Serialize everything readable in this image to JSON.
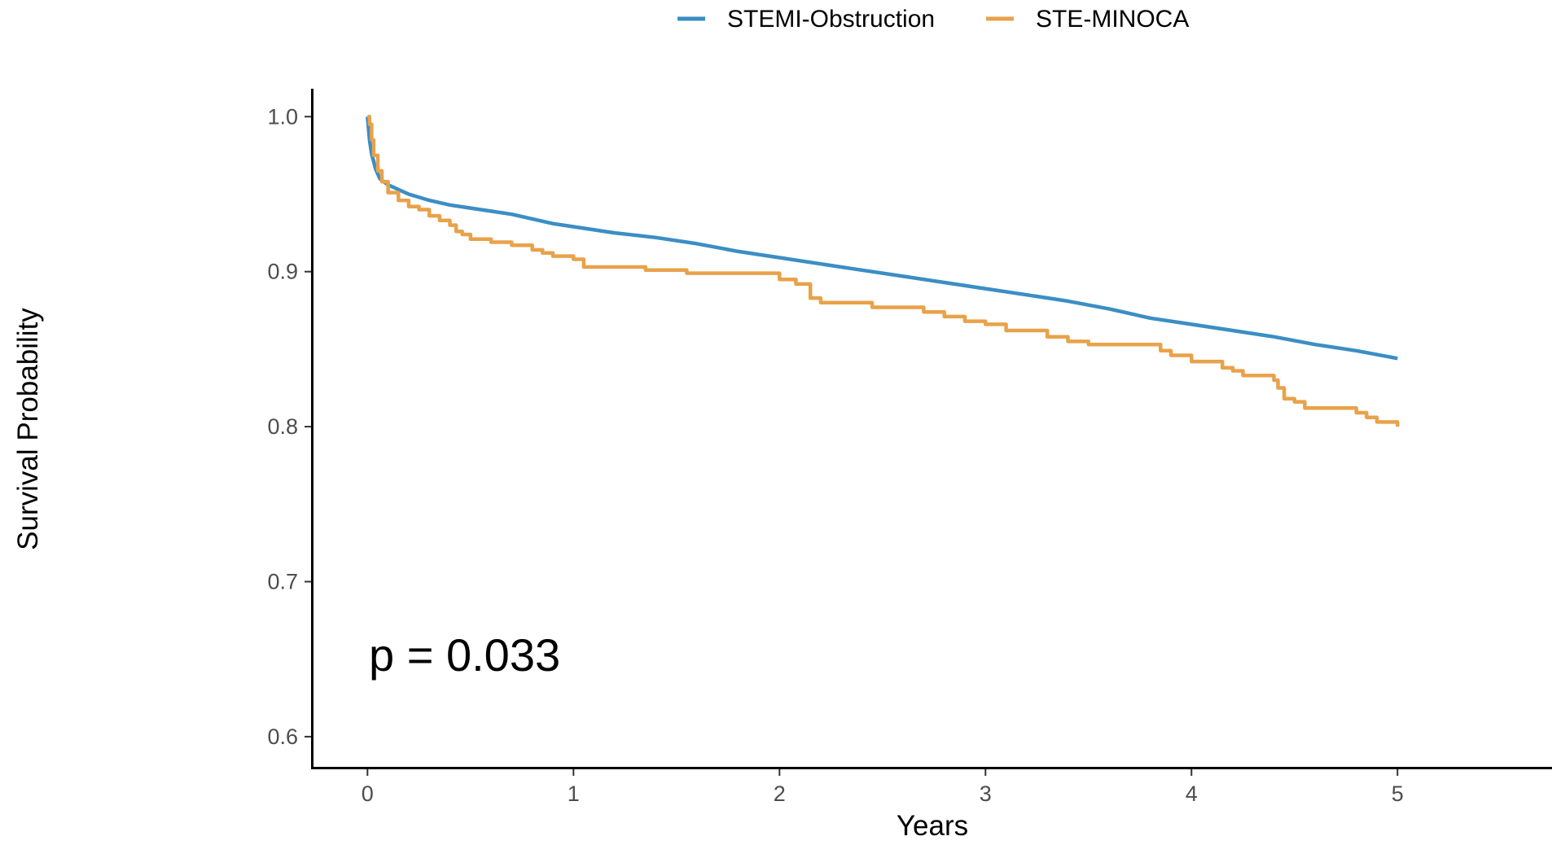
{
  "chart_data": {
    "type": "line",
    "title": "",
    "xlabel": "Years",
    "ylabel": "Survival Probability",
    "xlim": [
      -0.27,
      5.75
    ],
    "ylim": [
      0.58,
      1.018
    ],
    "x_ticks": [
      "0",
      "1",
      "2",
      "3",
      "4",
      "5"
    ],
    "y_ticks": [
      "0.6",
      "0.7",
      "0.8",
      "0.9",
      "1.0"
    ],
    "legend_position": "top",
    "grid": false,
    "annotation": "p = 0.033",
    "series": [
      {
        "name": "STEMI-Obstruction",
        "color": "#3b8ec4",
        "step": false,
        "x": [
          0,
          0.01,
          0.02,
          0.04,
          0.06,
          0.1,
          0.2,
          0.3,
          0.4,
          0.5,
          0.6,
          0.7,
          0.8,
          0.9,
          1.0,
          1.2,
          1.4,
          1.6,
          1.8,
          2.0,
          2.2,
          2.4,
          2.6,
          2.8,
          3.0,
          3.2,
          3.4,
          3.6,
          3.8,
          4.0,
          4.2,
          4.4,
          4.6,
          4.8,
          5.0
        ],
        "y": [
          1.0,
          0.985,
          0.976,
          0.966,
          0.96,
          0.956,
          0.95,
          0.946,
          0.943,
          0.941,
          0.939,
          0.937,
          0.934,
          0.931,
          0.929,
          0.925,
          0.922,
          0.918,
          0.913,
          0.909,
          0.905,
          0.901,
          0.897,
          0.893,
          0.889,
          0.885,
          0.881,
          0.876,
          0.87,
          0.866,
          0.862,
          0.858,
          0.853,
          0.849,
          0.844
        ]
      },
      {
        "name": "STE-MINOCA",
        "color": "#e8a24a",
        "step": true,
        "x": [
          0,
          0.01,
          0.02,
          0.03,
          0.05,
          0.07,
          0.1,
          0.15,
          0.2,
          0.25,
          0.3,
          0.35,
          0.4,
          0.43,
          0.46,
          0.5,
          0.6,
          0.7,
          0.8,
          0.85,
          0.9,
          1.0,
          1.05,
          1.3,
          1.35,
          1.5,
          1.55,
          1.7,
          1.85,
          2.0,
          2.08,
          2.1,
          2.15,
          2.2,
          2.45,
          2.55,
          2.7,
          2.8,
          2.9,
          3.0,
          3.1,
          3.3,
          3.4,
          3.5,
          3.8,
          3.85,
          3.9,
          4.0,
          4.1,
          4.15,
          4.2,
          4.25,
          4.35,
          4.4,
          4.42,
          4.45,
          4.5,
          4.55,
          4.8,
          4.85,
          4.9,
          5.0
        ],
        "y": [
          1.0,
          0.995,
          0.985,
          0.975,
          0.965,
          0.958,
          0.951,
          0.946,
          0.942,
          0.94,
          0.936,
          0.933,
          0.93,
          0.926,
          0.924,
          0.921,
          0.919,
          0.917,
          0.914,
          0.912,
          0.91,
          0.908,
          0.903,
          0.903,
          0.901,
          0.901,
          0.899,
          0.899,
          0.899,
          0.895,
          0.892,
          0.892,
          0.883,
          0.88,
          0.877,
          0.877,
          0.874,
          0.871,
          0.868,
          0.866,
          0.862,
          0.858,
          0.855,
          0.853,
          0.853,
          0.849,
          0.846,
          0.842,
          0.842,
          0.838,
          0.836,
          0.833,
          0.833,
          0.83,
          0.825,
          0.818,
          0.816,
          0.812,
          0.809,
          0.806,
          0.803,
          0.8
        ]
      }
    ]
  }
}
